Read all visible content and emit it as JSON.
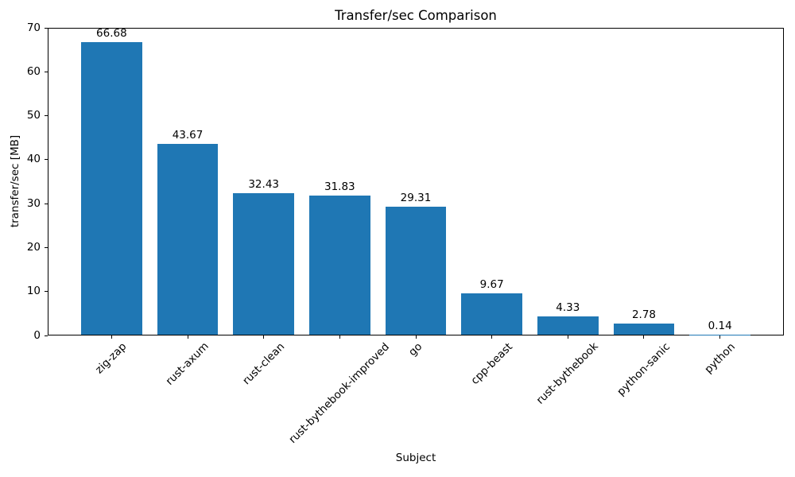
{
  "chart_data": {
    "type": "bar",
    "title": "Transfer/sec Comparison",
    "xlabel": "Subject",
    "ylabel": "transfer/sec [MB]",
    "categories": [
      "zig-zap",
      "rust-axum",
      "rust-clean",
      "rust-bythebook-improved",
      "go",
      "cpp-beast",
      "rust-bythebook",
      "python-sanic",
      "python"
    ],
    "values": [
      66.68,
      43.67,
      32.43,
      31.83,
      29.31,
      9.67,
      4.33,
      2.78,
      0.14
    ],
    "bar_labels": [
      "66.68",
      "43.67",
      "32.43",
      "31.83",
      "29.31",
      "9.67",
      "4.33",
      "2.78",
      "0.14"
    ],
    "ylim": [
      0,
      70
    ],
    "yticks": [
      0,
      10,
      20,
      30,
      40,
      50,
      60,
      70
    ],
    "bar_color": "#1f77b4",
    "axis_color": "#000000",
    "text_color": "#000000",
    "grid": false,
    "legend_position": "none",
    "xtick_rotation_deg": 45
  }
}
